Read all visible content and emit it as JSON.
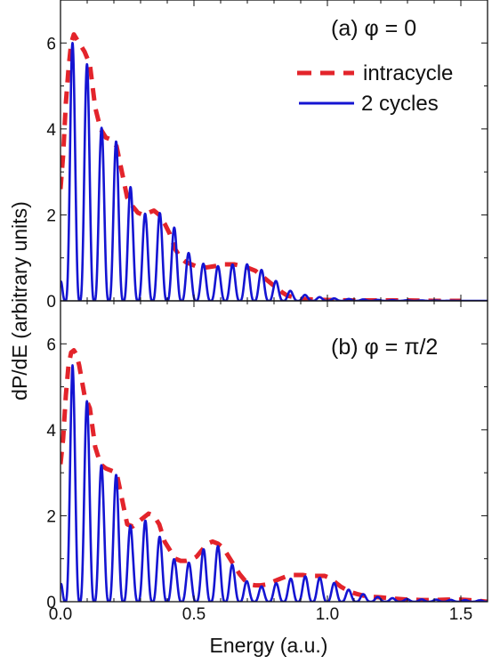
{
  "chart_data": {
    "type": "line",
    "xlabel": "Energy (a.u.)",
    "ylabel": "dP/dE (arbitrary units)",
    "xlim": [
      0,
      1.6
    ],
    "x_ticks": [
      "0.0",
      "0.5",
      "1.0",
      "1.5"
    ],
    "y_ticks": [
      "0",
      "2",
      "4",
      "6"
    ],
    "legend": {
      "placement": "top-right",
      "entries": [
        {
          "label": "intracycle",
          "color": "#e3242b",
          "style": "dashed"
        },
        {
          "label": "2 cycles",
          "color": "#1414d2",
          "style": "solid"
        }
      ]
    },
    "panels": [
      {
        "label": "(a) φ = 0",
        "ylim": [
          0,
          7
        ],
        "two_cycles_period": 0.0545,
        "intracycle": {
          "x": [
            0.0,
            0.01,
            0.02,
            0.03,
            0.04,
            0.05,
            0.07,
            0.09,
            0.11,
            0.13,
            0.15,
            0.17,
            0.19,
            0.21,
            0.23,
            0.25,
            0.27,
            0.29,
            0.31,
            0.33,
            0.35,
            0.37,
            0.39,
            0.41,
            0.43,
            0.45,
            0.47,
            0.49,
            0.51,
            0.53,
            0.55,
            0.57,
            0.59,
            0.61,
            0.63,
            0.65,
            0.67,
            0.69,
            0.71,
            0.73,
            0.75,
            0.77,
            0.79,
            0.81,
            0.83,
            0.85,
            0.9,
            0.95,
            1.0,
            1.05,
            1.1,
            1.2,
            1.3,
            1.4,
            1.5
          ],
          "y": [
            2.6,
            3.4,
            4.6,
            5.4,
            6.0,
            6.2,
            6.0,
            5.8,
            5.5,
            4.5,
            4.0,
            3.8,
            3.75,
            3.6,
            3.0,
            2.4,
            2.2,
            2.05,
            2.0,
            2.05,
            2.1,
            2.0,
            1.8,
            1.55,
            1.2,
            1.0,
            0.9,
            0.85,
            0.8,
            0.78,
            0.78,
            0.8,
            0.82,
            0.85,
            0.85,
            0.85,
            0.82,
            0.8,
            0.75,
            0.7,
            0.6,
            0.5,
            0.4,
            0.3,
            0.2,
            0.12,
            0.05,
            0.03,
            0.02,
            0.015,
            0.01,
            0.01,
            0.01,
            0.0,
            0.0
          ]
        },
        "two_cycles_envelope": {
          "x": [
            0.0,
            0.01,
            0.02,
            0.04,
            0.06,
            0.1,
            0.15,
            0.21,
            0.27,
            0.32,
            0.38,
            0.44,
            0.49,
            0.54,
            0.6,
            0.65,
            0.71,
            0.76,
            0.82,
            0.87,
            0.93,
            0.98,
            1.04,
            1.1,
            1.2,
            1.35,
            1.5,
            1.6
          ],
          "y": [
            0.7,
            2.0,
            4.2,
            6.0,
            6.0,
            5.5,
            4.05,
            3.7,
            2.5,
            2.0,
            2.05,
            1.6,
            1.0,
            0.85,
            0.8,
            0.85,
            0.85,
            0.7,
            0.4,
            0.2,
            0.12,
            0.08,
            0.05,
            0.04,
            0.02,
            0.01,
            0.0,
            0.0
          ]
        }
      },
      {
        "label": "(b) φ = π/2",
        "ylim": [
          0,
          7
        ],
        "two_cycles_period": 0.0545,
        "intracycle": {
          "x": [
            0.0,
            0.01,
            0.02,
            0.03,
            0.04,
            0.05,
            0.06,
            0.07,
            0.09,
            0.11,
            0.13,
            0.15,
            0.17,
            0.19,
            0.21,
            0.23,
            0.25,
            0.27,
            0.29,
            0.31,
            0.33,
            0.35,
            0.37,
            0.39,
            0.41,
            0.43,
            0.45,
            0.47,
            0.49,
            0.51,
            0.53,
            0.55,
            0.57,
            0.59,
            0.61,
            0.63,
            0.65,
            0.67,
            0.69,
            0.71,
            0.73,
            0.75,
            0.77,
            0.79,
            0.81,
            0.83,
            0.85,
            0.87,
            0.89,
            0.91,
            0.93,
            0.95,
            0.97,
            0.99,
            1.01,
            1.03,
            1.05,
            1.07,
            1.09,
            1.11,
            1.13,
            1.15,
            1.2,
            1.25,
            1.3,
            1.35,
            1.4,
            1.45,
            1.5,
            1.55,
            1.6
          ],
          "y": [
            3.2,
            3.8,
            4.8,
            5.5,
            5.8,
            5.85,
            5.75,
            5.5,
            4.8,
            4.5,
            3.6,
            3.2,
            3.1,
            3.05,
            3.0,
            2.4,
            1.8,
            1.75,
            1.85,
            1.95,
            2.05,
            2.0,
            1.8,
            1.4,
            1.2,
            1.0,
            0.95,
            0.95,
            0.98,
            1.05,
            1.2,
            1.35,
            1.4,
            1.35,
            1.25,
            1.05,
            0.85,
            0.65,
            0.5,
            0.4,
            0.38,
            0.38,
            0.4,
            0.45,
            0.5,
            0.55,
            0.6,
            0.62,
            0.62,
            0.62,
            0.6,
            0.6,
            0.6,
            0.6,
            0.55,
            0.45,
            0.35,
            0.28,
            0.22,
            0.18,
            0.15,
            0.12,
            0.1,
            0.07,
            0.05,
            0.04,
            0.04,
            0.05,
            0.05,
            0.03,
            0.0
          ]
        },
        "two_cycles_envelope": {
          "x": [
            0.0,
            0.01,
            0.02,
            0.045,
            0.07,
            0.1,
            0.16,
            0.21,
            0.27,
            0.32,
            0.38,
            0.43,
            0.49,
            0.54,
            0.6,
            0.65,
            0.71,
            0.76,
            0.82,
            0.87,
            0.93,
            0.98,
            1.04,
            1.09,
            1.15,
            1.2,
            1.3,
            1.4,
            1.5,
            1.6
          ],
          "y": [
            0.6,
            2.0,
            4.2,
            5.5,
            5.3,
            4.65,
            3.0,
            2.95,
            1.6,
            1.9,
            1.45,
            0.95,
            0.9,
            1.25,
            1.3,
            0.8,
            0.4,
            0.35,
            0.45,
            0.55,
            0.6,
            0.55,
            0.4,
            0.25,
            0.15,
            0.1,
            0.06,
            0.05,
            0.04,
            0.03
          ]
        }
      }
    ]
  }
}
